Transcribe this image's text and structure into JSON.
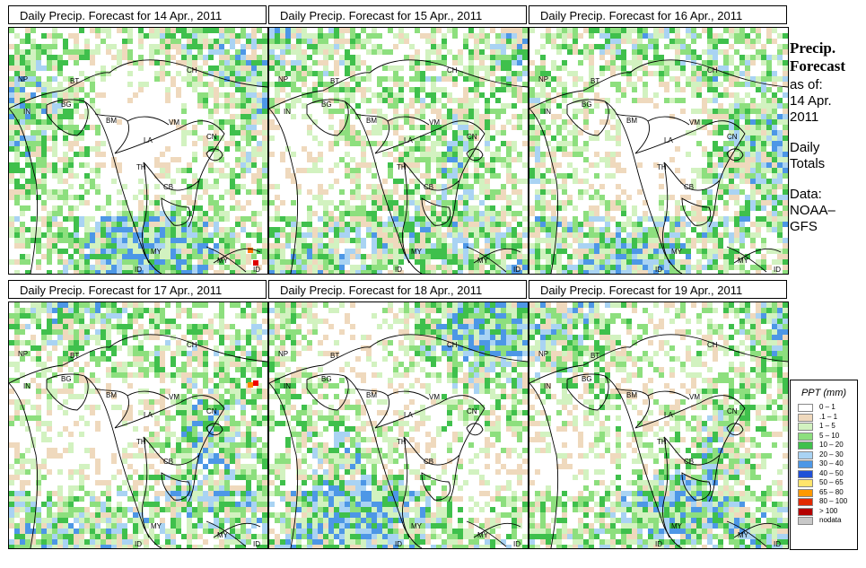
{
  "panels": [
    {
      "title": "Daily Precip. Forecast for  14 Apr., 2011",
      "seed": 11,
      "hot": [
        [
          276,
          276,
          "#ff7700"
        ],
        [
          282,
          290,
          "#dd0000"
        ]
      ]
    },
    {
      "title": "Daily Precip. Forecast for  15 Apr., 2011",
      "seed": 23,
      "hot": [
        [
          268,
          74,
          "#ee0000"
        ],
        [
          278,
          74,
          "#ff8800"
        ],
        [
          256,
          78,
          "#ffcc00"
        ]
      ]
    },
    {
      "title": "Daily Precip. Forecast for  16 Apr., 2011",
      "seed": 37,
      "hot": [
        [
          198,
          190,
          "#ffcc00"
        ],
        [
          190,
          200,
          "#ff8800"
        ]
      ]
    },
    {
      "title": "Daily Precip. Forecast for  17 Apr., 2011",
      "seed": 41,
      "hot": [
        [
          282,
          424,
          "#ee0000"
        ],
        [
          276,
          426,
          "#ff8800"
        ]
      ]
    },
    {
      "title": "Daily Precip. Forecast for  18 Apr., 2011",
      "seed": 53,
      "hot": [
        [
          74,
          412,
          "#ee0000"
        ],
        [
          66,
          410,
          "#ff8800"
        ],
        [
          84,
          408,
          "#ffcc00"
        ]
      ]
    },
    {
      "title": "Daily Precip. Forecast for  19 Apr., 2011",
      "seed": 67,
      "hot": [
        [
          82,
          402,
          "#ff8800"
        ],
        [
          76,
          414,
          "#ffcc00"
        ]
      ]
    }
  ],
  "country_labels": [
    "NP",
    "BT",
    "BG",
    "IN",
    "BM",
    "CH",
    "VM",
    "LA",
    "TH",
    "CB",
    "CN",
    "MY",
    "ID"
  ],
  "side": {
    "heading_line1": "Precip.",
    "heading_line2": "Forecast",
    "as_of": "as of:",
    "date_line1": "14 Apr.",
    "date_line2": "2011",
    "totals_line1": "Daily",
    "totals_line2": "Totals",
    "data_line1": "Data:",
    "data_line2": "NOAA–",
    "data_line3": "GFS"
  },
  "legend": {
    "title": "PPT (mm)",
    "items": [
      {
        "label": "0 – 1",
        "color": "#ffffff"
      },
      {
        "label": ".1 – 1",
        "color": "#efd9bd"
      },
      {
        "label": "1 – 5",
        "color": "#d2f2c0"
      },
      {
        "label": "5 – 10",
        "color": "#8ddf7e"
      },
      {
        "label": "10 – 20",
        "color": "#3fc04c"
      },
      {
        "label": "20 – 30",
        "color": "#a9d3f3"
      },
      {
        "label": "30 – 40",
        "color": "#4d97e6"
      },
      {
        "label": "40 – 50",
        "color": "#1f50d7"
      },
      {
        "label": "50 – 65",
        "color": "#ffe56c"
      },
      {
        "label": "65 – 80",
        "color": "#ff9900"
      },
      {
        "label": "80 – 100",
        "color": "#e22a00"
      },
      {
        "label": "> 100",
        "color": "#b40000"
      },
      {
        "label": "nodata",
        "color": "#c8c8c8"
      }
    ]
  }
}
